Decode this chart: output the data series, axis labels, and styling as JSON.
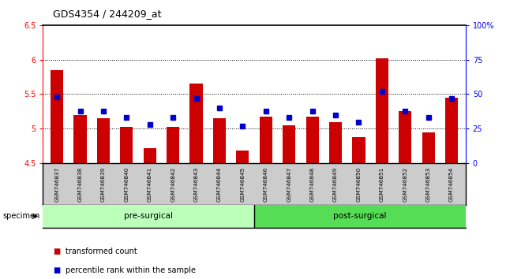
{
  "title": "GDS4354 / 244209_at",
  "samples": [
    "GSM746837",
    "GSM746838",
    "GSM746839",
    "GSM746840",
    "GSM746841",
    "GSM746842",
    "GSM746843",
    "GSM746844",
    "GSM746845",
    "GSM746846",
    "GSM746847",
    "GSM746848",
    "GSM746849",
    "GSM746850",
    "GSM746851",
    "GSM746852",
    "GSM746853",
    "GSM746854"
  ],
  "bar_values": [
    5.85,
    5.2,
    5.15,
    5.03,
    4.72,
    5.03,
    5.65,
    5.15,
    4.68,
    5.18,
    5.05,
    5.17,
    5.1,
    4.88,
    6.02,
    5.25,
    4.95,
    5.45
  ],
  "percentile_values": [
    48,
    38,
    38,
    33,
    28,
    33,
    47,
    40,
    27,
    38,
    33,
    38,
    35,
    30,
    52,
    38,
    33,
    47
  ],
  "ylim_left": [
    4.5,
    6.5
  ],
  "ylim_right": [
    0,
    100
  ],
  "yticks_left": [
    4.5,
    5.0,
    5.5,
    6.0,
    6.5
  ],
  "ytick_labels_left": [
    "4.5",
    "5",
    "5.5",
    "6",
    "6.5"
  ],
  "yticks_right": [
    0,
    25,
    50,
    75,
    100
  ],
  "ytick_labels_right": [
    "0",
    "25",
    "50",
    "75",
    "100%"
  ],
  "bar_color": "#cc0000",
  "dot_color": "#0000cc",
  "groups": [
    {
      "label": "pre-surgical",
      "color": "#bbffbb",
      "start": 0,
      "end": 9
    },
    {
      "label": "post-surgical",
      "color": "#55dd55",
      "start": 9,
      "end": 18
    }
  ],
  "tick_area_color": "#cccccc",
  "legend_items": [
    {
      "label": "transformed count",
      "color": "#cc0000"
    },
    {
      "label": "percentile rank within the sample",
      "color": "#0000cc"
    }
  ],
  "specimen_label": "specimen"
}
